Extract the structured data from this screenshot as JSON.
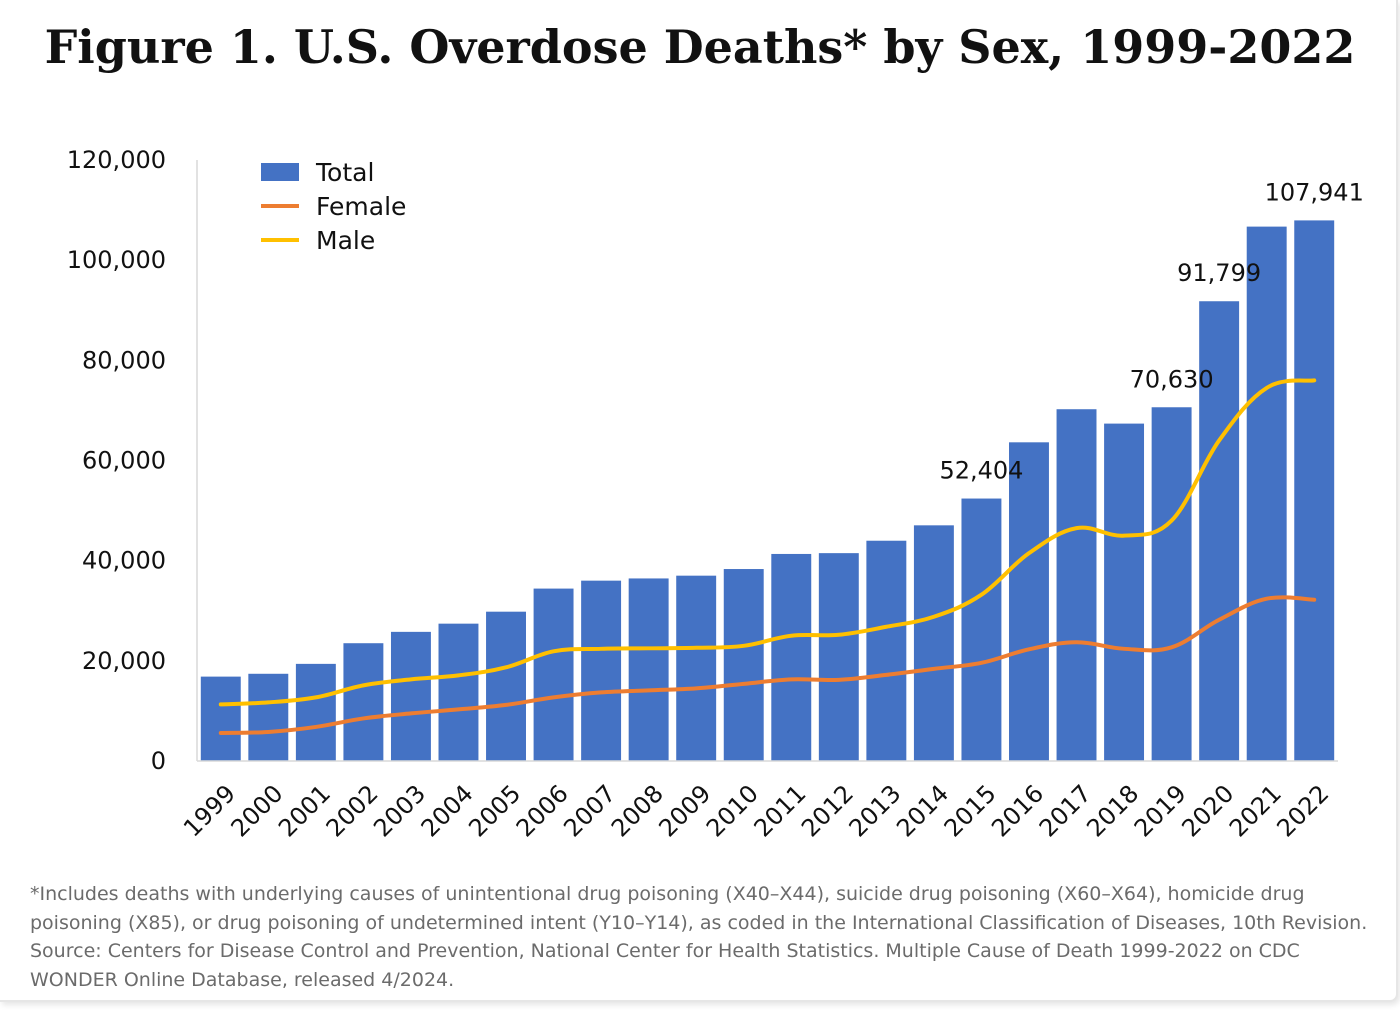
{
  "title": "Figure 1. U.S. Overdose Deaths* by Sex, 1999-2022",
  "colors": {
    "total": "#4472C4",
    "female": "#ED7D31",
    "male": "#FFC000",
    "axis": "#d9d9d9",
    "text": "#111111",
    "footnote": "#6b6b6b"
  },
  "chart_data": {
    "type": "bar",
    "title": "Figure 1. U.S. Overdose Deaths* by Sex, 1999-2022",
    "xlabel": "",
    "ylabel": "",
    "ylim": [
      0,
      120000
    ],
    "yticks": [
      0,
      20000,
      40000,
      60000,
      80000,
      100000,
      120000
    ],
    "ytick_labels": [
      "0",
      "20,000",
      "40,000",
      "60,000",
      "80,000",
      "100,000",
      "120,000"
    ],
    "grid": false,
    "legend_position": "top-left",
    "categories": [
      "1999",
      "2000",
      "2001",
      "2002",
      "2003",
      "2004",
      "2005",
      "2006",
      "2007",
      "2008",
      "2009",
      "2010",
      "2011",
      "2012",
      "2013",
      "2014",
      "2015",
      "2016",
      "2017",
      "2018",
      "2019",
      "2020",
      "2021",
      "2022"
    ],
    "series": [
      {
        "name": "Total",
        "type": "bar",
        "values": [
          16849,
          17415,
          19394,
          23518,
          25785,
          27424,
          29813,
          34425,
          36010,
          36450,
          37004,
          38329,
          41340,
          41502,
          43982,
          47055,
          52404,
          63632,
          70237,
          67367,
          70630,
          91799,
          106699,
          107941
        ]
      },
      {
        "name": "Female",
        "type": "line",
        "values": [
          5600,
          5800,
          6800,
          8500,
          9500,
          10300,
          11200,
          12700,
          13700,
          14100,
          14500,
          15400,
          16300,
          16200,
          17200,
          18400,
          19600,
          22300,
          23700,
          22400,
          22700,
          28200,
          32400,
          32200
        ]
      },
      {
        "name": "Male",
        "type": "line",
        "values": [
          11300,
          11700,
          12700,
          15100,
          16300,
          17100,
          18700,
          21900,
          22400,
          22500,
          22600,
          23000,
          25000,
          25200,
          26800,
          28800,
          33200,
          41500,
          46500,
          45000,
          48000,
          64000,
          74500,
          76000
        ]
      }
    ],
    "data_labels": [
      {
        "category": "2015",
        "text": "52,404"
      },
      {
        "category": "2019",
        "text": "70,630"
      },
      {
        "category": "2020",
        "text": "91,799"
      },
      {
        "category": "2022",
        "text": "107,941"
      }
    ]
  },
  "footnote": "*Includes deaths with underlying causes of unintentional drug poisoning (X40–X44), suicide drug poisoning (X60–X64), homicide drug\npoisoning (X85), or drug poisoning of undetermined intent (Y10–Y14), as coded in the International Classification of Diseases, 10th Revision.\nSource: Centers for Disease Control and Prevention, National Center for Health Statistics. Multiple Cause of Death 1999-2022 on CDC\nWONDER Online Database, released 4/2024."
}
